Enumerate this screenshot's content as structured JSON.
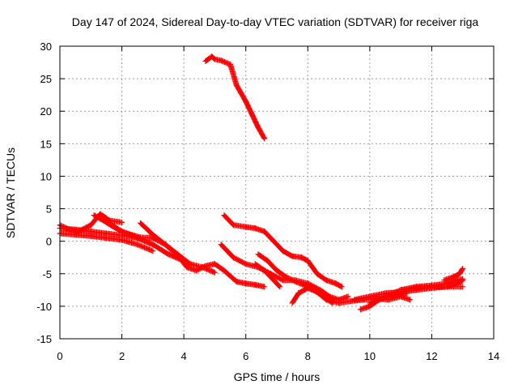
{
  "chart_data": {
    "type": "scatter",
    "title": "Day 147 of 2024, Sidereal Day-to-day VTEC variation (SDTVAR) for receiver riga",
    "xlabel": "GPS time / hours",
    "ylabel": "SDTVAR / TECUs",
    "xlim": [
      0,
      14
    ],
    "ylim": [
      -15,
      30
    ],
    "xticks": [
      "0",
      "2",
      "4",
      "6",
      "8",
      "10",
      "12",
      "14"
    ],
    "yticks": [
      "-15",
      "-10",
      "-5",
      "0",
      "5",
      "10",
      "15",
      "20",
      "25",
      "30"
    ],
    "grid": true,
    "marker": "+",
    "color": "#ff0000",
    "series": [
      {
        "name": "track-1",
        "x": [
          4.7,
          4.9,
          5.0,
          5.2,
          5.5,
          5.7,
          6.0,
          6.2,
          6.4,
          6.6
        ],
        "y": [
          27.7,
          28.4,
          28.0,
          27.8,
          27.2,
          24.0,
          21.5,
          19.5,
          17.5,
          15.8
        ]
      },
      {
        "name": "track-2",
        "x": [
          0.0,
          0.3,
          0.6,
          1.0,
          1.3,
          1.6,
          2.0
        ],
        "y": [
          2.5,
          1.8,
          1.5,
          2.5,
          4.2,
          3.2,
          2.9
        ]
      },
      {
        "name": "track-3",
        "x": [
          0.0,
          0.5,
          1.0,
          1.5,
          2.0,
          2.5,
          3.0,
          3.5,
          3.9
        ],
        "y": [
          2.0,
          1.8,
          1.5,
          1.2,
          0.9,
          0.5,
          -0.5,
          -2.0,
          -2.8
        ]
      },
      {
        "name": "track-4",
        "x": [
          0.0,
          0.5,
          1.0,
          1.5,
          2.0,
          2.5,
          3.0
        ],
        "y": [
          1.2,
          1.0,
          0.8,
          0.5,
          0.2,
          -0.5,
          -1.5
        ]
      },
      {
        "name": "track-5",
        "x": [
          1.1,
          1.4,
          1.7,
          2.0,
          2.3,
          2.6,
          3.0,
          3.4,
          3.8,
          4.1,
          4.4,
          4.7,
          5.0,
          5.3,
          5.7,
          6.0,
          6.3,
          6.6
        ],
        "y": [
          4.0,
          3.2,
          2.3,
          1.5,
          1.0,
          0.6,
          0.5,
          -0.5,
          -2.2,
          -4.0,
          -4.5,
          -3.8,
          -3.5,
          -4.5,
          -6.2,
          -6.5,
          -6.7,
          -7.0
        ]
      },
      {
        "name": "track-6",
        "x": [
          2.6,
          3.0,
          3.4,
          3.8,
          4.2,
          4.6,
          5.0
        ],
        "y": [
          2.8,
          1.0,
          -0.5,
          -2.0,
          -3.5,
          -4.0,
          -4.8
        ]
      },
      {
        "name": "track-7",
        "x": [
          1.5,
          2.0,
          2.5,
          3.0
        ],
        "y": [
          3.0,
          1.5,
          0.5,
          -0.5
        ]
      },
      {
        "name": "track-8",
        "x": [
          5.3,
          5.6,
          6.0,
          6.3,
          6.6,
          6.9,
          7.2,
          7.5,
          7.8,
          8.0,
          8.3,
          8.6,
          8.9,
          9.1
        ],
        "y": [
          4.0,
          2.5,
          2.2,
          2.0,
          1.5,
          0.0,
          -1.5,
          -2.3,
          -2.5,
          -3.0,
          -5.0,
          -6.0,
          -6.5,
          -7.0
        ]
      },
      {
        "name": "track-9",
        "x": [
          5.2,
          5.6,
          6.0,
          6.4,
          6.8,
          7.2,
          7.6,
          8.0,
          8.4,
          8.7,
          9.0,
          9.3
        ],
        "y": [
          -0.5,
          -2.5,
          -3.5,
          -4.0,
          -5.0,
          -6.0,
          -6.0,
          -6.5,
          -7.5,
          -8.5,
          -9.0,
          -8.5
        ]
      },
      {
        "name": "track-10",
        "x": [
          6.4,
          6.7,
          7.0,
          7.3,
          7.6,
          7.9,
          8.2,
          8.5,
          8.8
        ],
        "y": [
          -2.0,
          -3.0,
          -4.5,
          -5.5,
          -6.2,
          -6.8,
          -7.5,
          -8.5,
          -9.5
        ]
      },
      {
        "name": "track-11",
        "x": [
          6.3,
          6.6,
          6.9,
          7.1
        ],
        "y": [
          -3.5,
          -4.5,
          -6.0,
          -7.0
        ]
      },
      {
        "name": "track-12",
        "x": [
          7.5,
          7.7,
          8.0,
          8.3,
          8.6,
          9.0,
          9.4,
          9.8,
          10.2,
          10.6,
          11.0,
          11.3
        ],
        "y": [
          -9.5,
          -8.0,
          -7.2,
          -7.8,
          -9.0,
          -9.5,
          -9.2,
          -9.0,
          -8.8,
          -9.0,
          -8.5,
          -9.0
        ]
      },
      {
        "name": "track-13",
        "x": [
          9.7,
          10.0,
          10.3,
          10.6,
          10.9,
          11.2
        ],
        "y": [
          -10.5,
          -10.0,
          -9.0,
          -8.5,
          -8.2,
          -8.0
        ]
      },
      {
        "name": "track-14",
        "x": [
          9.5,
          10.0,
          10.5,
          11.0,
          11.5,
          12.0,
          12.5,
          13.0
        ],
        "y": [
          -9.0,
          -8.5,
          -8.0,
          -7.8,
          -7.5,
          -7.2,
          -7.0,
          -7.0
        ]
      },
      {
        "name": "track-15",
        "x": [
          10.0,
          10.5,
          11.0,
          11.5,
          12.0,
          12.5,
          12.8,
          13.0
        ],
        "y": [
          -9.5,
          -8.5,
          -7.5,
          -7.2,
          -7.0,
          -7.0,
          -6.5,
          -6.0
        ]
      },
      {
        "name": "track-16",
        "x": [
          11.0,
          11.5,
          12.0,
          12.5,
          12.8,
          13.0
        ],
        "y": [
          -7.5,
          -7.0,
          -6.8,
          -6.5,
          -6.0,
          -5.8
        ]
      },
      {
        "name": "track-17",
        "x": [
          12.4,
          12.7,
          12.9,
          13.0
        ],
        "y": [
          -6.0,
          -5.5,
          -5.0,
          -4.2
        ]
      }
    ]
  }
}
